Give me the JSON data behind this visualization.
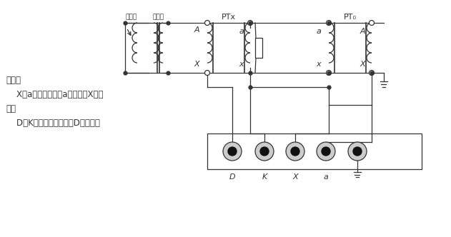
{
  "bg_color": "#ffffff",
  "line_color": "#333333",
  "fig_width": 6.31,
  "fig_height": 3.32,
  "labels": {
    "tuya": "调压器",
    "shengya": "升压器",
    "PTx": "PTx",
    "PT0": "PT₀",
    "A_ptx_pri": "A",
    "X_ptx_pri": "X",
    "a_ptx_sec": "a",
    "x_ptx_sec": "x",
    "a_pt0_pri": "a",
    "x_pt0_pri": "x",
    "A_pt0_sec": "A",
    "X_pt0_sec": "X",
    "D": "D",
    "K": "K",
    "X_term": "X",
    "a_term": "a",
    "desc1": "其中：",
    "desc2": "    X、a为工作电压，a为高端，X为低",
    "desc3": "端。",
    "desc4": "    D、K为差压信号，其中D为低端。"
  }
}
